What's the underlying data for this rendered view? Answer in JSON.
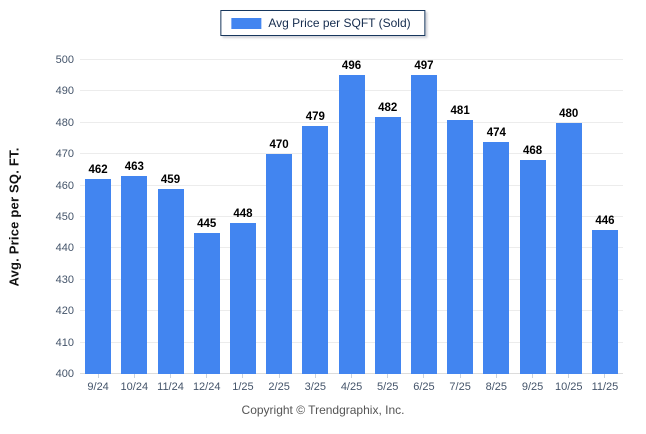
{
  "legend": {
    "label": "Avg Price per SQFT (Sold)",
    "swatch_color": "#4285f0"
  },
  "chart_data": {
    "type": "bar",
    "title": "",
    "xlabel": "",
    "ylabel": "Avg. Price per SQ. FT.",
    "categories": [
      "9/24",
      "10/24",
      "11/24",
      "12/24",
      "1/25",
      "2/25",
      "3/25",
      "4/25",
      "5/25",
      "6/25",
      "7/25",
      "8/25",
      "9/25",
      "10/25",
      "11/25"
    ],
    "series": [
      {
        "name": "Avg Price per SQFT (Sold)",
        "values": [
          462,
          463,
          459,
          445,
          448,
          470,
          479,
          496,
          482,
          497,
          481,
          474,
          468,
          480,
          446
        ]
      }
    ],
    "ylim": [
      400,
      500
    ],
    "ytick_step": 10,
    "grid": true,
    "legend_position": "top-center",
    "bar_color": "#4285f0"
  },
  "footer": {
    "text": "Copyright © Trendgraphix, Inc."
  }
}
